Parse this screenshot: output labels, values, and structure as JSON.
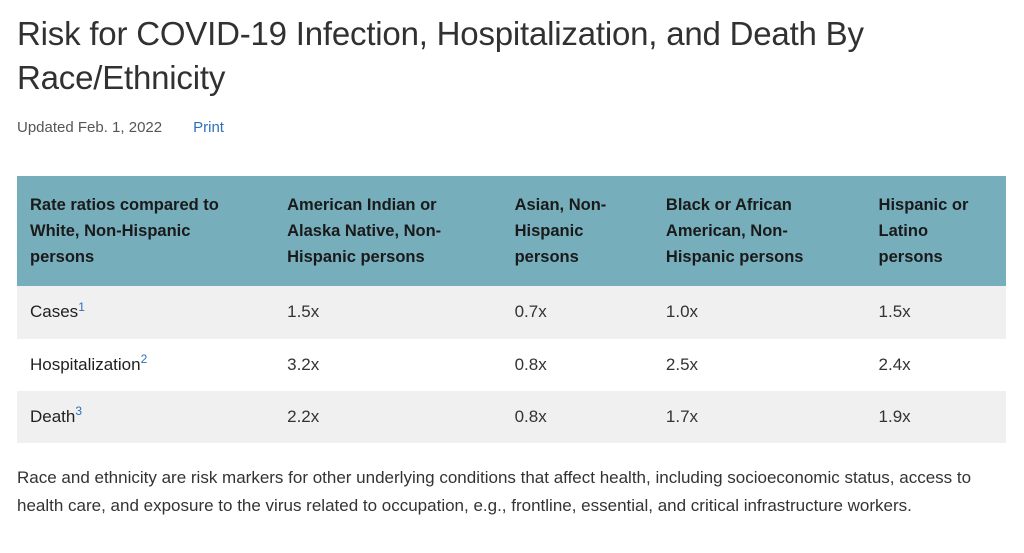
{
  "page": {
    "title": "Risk for COVID-19 Infection, Hospitalization, and Death By Race/Ethnicity",
    "updated": "Updated Feb. 1, 2022",
    "print_label": "Print"
  },
  "colors": {
    "table_header_bg": "#76AEBC",
    "table_stripe_bg": "#F0F0F0",
    "link_blue": "#2B71B8",
    "text": "#333333"
  },
  "table": {
    "columns": [
      "Rate ratios compared to White, Non-Hispanic persons",
      "American Indian or Alaska Native, Non-Hispanic persons",
      "Asian, Non-Hispanic persons",
      "Black or African American, Non-Hispanic persons",
      "Hispanic or Latino persons"
    ],
    "rows": [
      {
        "label": "Cases",
        "footnote": "1",
        "values": [
          "1.5x",
          "0.7x",
          "1.0x",
          "1.5x"
        ]
      },
      {
        "label": "Hospitalization",
        "footnote": "2",
        "values": [
          "3.2x",
          "0.8x",
          "2.5x",
          "2.4x"
        ]
      },
      {
        "label": "Death",
        "footnote": "3",
        "values": [
          "2.2x",
          "0.8x",
          "1.7x",
          "1.9x"
        ]
      }
    ]
  },
  "footer_note": "Race and ethnicity are risk markers for other underlying conditions that affect health, including socioeconomic status, access to health care, and exposure to the virus related to occupation, e.g., frontline, essential, and critical infrastructure workers."
}
